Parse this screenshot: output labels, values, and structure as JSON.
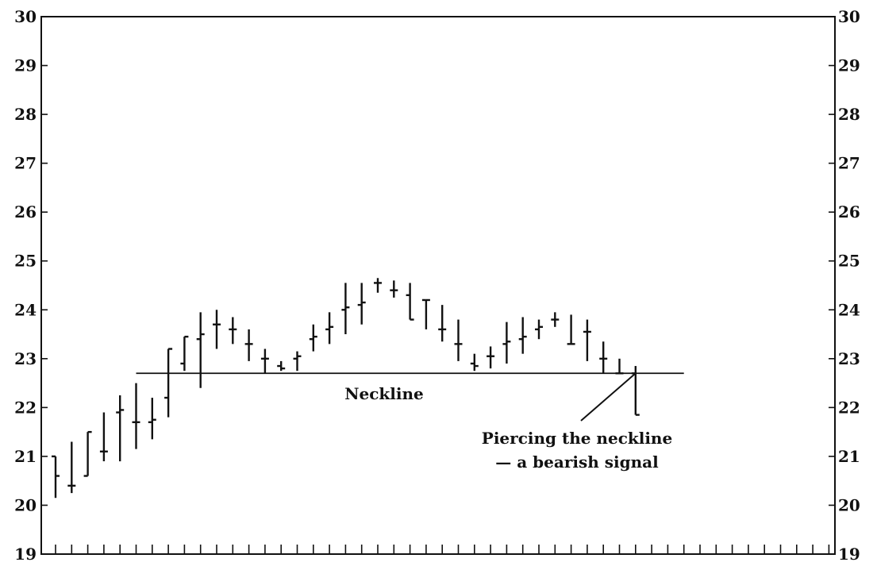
{
  "chart_data": {
    "type": "ohlc-bar",
    "title": "",
    "xlabel": "",
    "ylabel": "",
    "ylim": [
      19,
      30
    ],
    "y_ticks": [
      19,
      20,
      21,
      22,
      23,
      24,
      25,
      26,
      27,
      28,
      29,
      30
    ],
    "y_tick_labels": [
      "19",
      "20",
      "21",
      "22",
      "23",
      "24",
      "25",
      "26",
      "27",
      "28",
      "29",
      "30"
    ],
    "x_tick_count": 49,
    "grid": false,
    "bars": [
      {
        "high": 21.0,
        "low": 20.15,
        "open": 21.0,
        "close": 20.6
      },
      {
        "high": 21.3,
        "low": 20.25,
        "open": 20.4,
        "close": 20.4
      },
      {
        "high": 21.5,
        "low": 20.6,
        "open": 20.6,
        "close": 21.5
      },
      {
        "high": 21.9,
        "low": 20.9,
        "open": 21.1,
        "close": 21.1
      },
      {
        "high": 22.25,
        "low": 20.9,
        "open": 21.9,
        "close": 21.95
      },
      {
        "high": 22.5,
        "low": 21.15,
        "open": 21.7,
        "close": 21.7
      },
      {
        "high": 22.2,
        "low": 21.35,
        "open": 21.7,
        "close": 21.75
      },
      {
        "high": 23.2,
        "low": 21.8,
        "open": 22.2,
        "close": 23.2
      },
      {
        "high": 23.45,
        "low": 22.75,
        "open": 22.9,
        "close": 23.45
      },
      {
        "high": 23.95,
        "low": 22.4,
        "open": 23.4,
        "close": 23.5
      },
      {
        "high": 24.0,
        "low": 23.2,
        "open": 23.7,
        "close": 23.7
      },
      {
        "high": 23.85,
        "low": 23.3,
        "open": 23.6,
        "close": 23.6
      },
      {
        "high": 23.6,
        "low": 22.95,
        "open": 23.3,
        "close": 23.3
      },
      {
        "high": 23.2,
        "low": 22.7,
        "open": 23.0,
        "close": 23.0
      },
      {
        "high": 22.95,
        "low": 22.75,
        "open": 22.85,
        "close": 22.8
      },
      {
        "high": 23.15,
        "low": 22.75,
        "open": 23.0,
        "close": 23.05
      },
      {
        "high": 23.7,
        "low": 23.15,
        "open": 23.4,
        "close": 23.45
      },
      {
        "high": 23.95,
        "low": 23.3,
        "open": 23.6,
        "close": 23.65
      },
      {
        "high": 24.55,
        "low": 23.5,
        "open": 24.0,
        "close": 24.05
      },
      {
        "high": 24.55,
        "low": 23.7,
        "open": 24.1,
        "close": 24.15
      },
      {
        "high": 24.65,
        "low": 24.35,
        "open": 24.55,
        "close": 24.55
      },
      {
        "high": 24.6,
        "low": 24.25,
        "open": 24.4,
        "close": 24.4
      },
      {
        "high": 24.55,
        "low": 23.8,
        "open": 24.3,
        "close": 23.8
      },
      {
        "high": 24.2,
        "low": 23.6,
        "open": 24.2,
        "close": 24.2
      },
      {
        "high": 24.1,
        "low": 23.35,
        "open": 23.6,
        "close": 23.6
      },
      {
        "high": 23.8,
        "low": 22.95,
        "open": 23.3,
        "close": 23.3
      },
      {
        "high": 23.1,
        "low": 22.75,
        "open": 22.9,
        "close": 22.85
      },
      {
        "high": 23.25,
        "low": 22.8,
        "open": 23.05,
        "close": 23.05
      },
      {
        "high": 23.75,
        "low": 22.9,
        "open": 23.3,
        "close": 23.35
      },
      {
        "high": 23.85,
        "low": 23.1,
        "open": 23.4,
        "close": 23.45
      },
      {
        "high": 23.8,
        "low": 23.4,
        "open": 23.6,
        "close": 23.65
      },
      {
        "high": 23.95,
        "low": 23.65,
        "open": 23.8,
        "close": 23.8
      },
      {
        "high": 23.9,
        "low": 23.3,
        "open": 23.3,
        "close": 23.3
      },
      {
        "high": 23.8,
        "low": 22.95,
        "open": 23.55,
        "close": 23.55
      },
      {
        "high": 23.35,
        "low": 22.7,
        "open": 23.0,
        "close": 23.0
      },
      {
        "high": 23.0,
        "low": 22.7,
        "open": 22.7,
        "close": 22.7
      },
      {
        "high": 22.85,
        "low": 21.85,
        "open": 22.7,
        "close": 21.85
      }
    ],
    "neckline": {
      "y": 22.7,
      "x_start_index": 5,
      "x_end_index": 39
    },
    "annotations": {
      "neckline_label": "Neckline",
      "signal_label_line1": "Piercing the neckline",
      "signal_label_line2": "— a bearish signal"
    }
  }
}
